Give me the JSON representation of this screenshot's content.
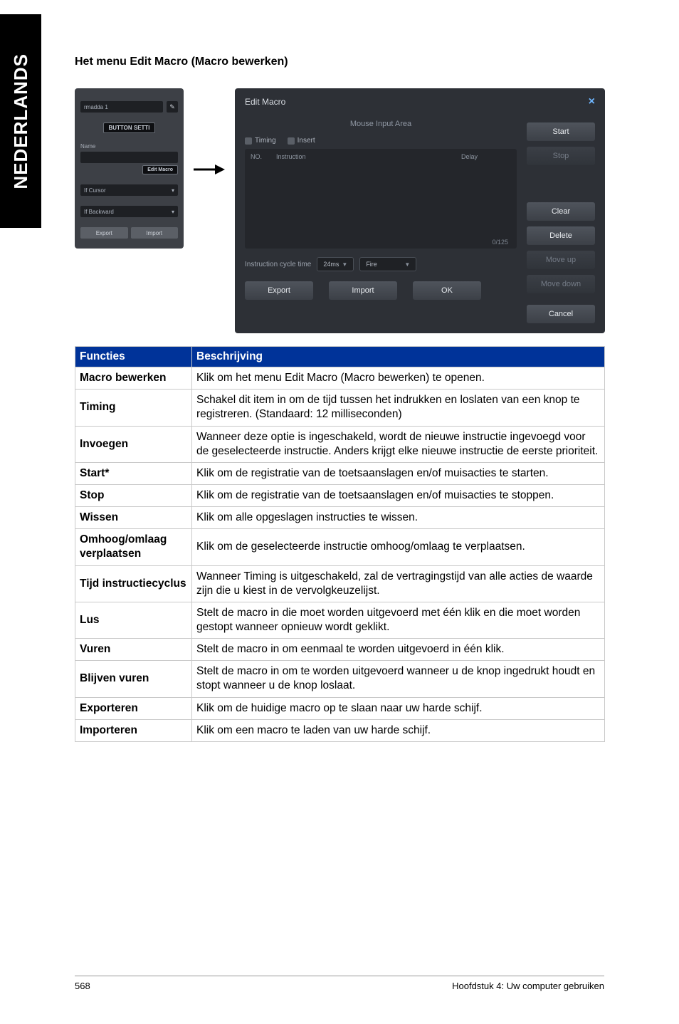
{
  "side_tab": "NEDERLANDS",
  "page_title": "Het menu Edit Macro (Macro bewerken)",
  "left_panel": {
    "top_field": "rmadda 1",
    "badge": "BUTTON SETTI",
    "name_label": "Name",
    "name_btn": "Edit Macro",
    "if_cursor": "If Cursor",
    "if_bwhwd": "If Backward",
    "export_btn": "Export",
    "import_btn": "Import"
  },
  "edit_macro": {
    "title": "Edit Macro",
    "close": "×",
    "subtitle": "Mouse Input Area",
    "tab_timing": "Timing",
    "tab_insert": "Insert",
    "col_no": "NO.",
    "col_instruction": "Instruction",
    "col_delay": "Delay",
    "counter": "0/125",
    "cycle_label": "Instruction cycle time",
    "cycle_value": "24ms",
    "fire_label": "Fire",
    "btn_start": "Start",
    "btn_stop": "Stop",
    "btn_clear": "Clear",
    "btn_delete": "Delete",
    "btn_moveup": "Move up",
    "btn_movedown": "Move down",
    "btn_export": "Export",
    "btn_import": "Import",
    "btn_ok": "OK",
    "btn_cancel": "Cancel"
  },
  "table": {
    "head_functies": "Functies",
    "head_beschrijving": "Beschrijving",
    "rows": [
      {
        "label": "Macro bewerken",
        "desc": "Klik om het menu Edit Macro (Macro bewerken) te openen."
      },
      {
        "label": "Timing",
        "desc": "Schakel dit item in om de tijd tussen het indrukken en loslaten van een knop te registreren. (Standaard: 12 milliseconden)"
      },
      {
        "label": "Invoegen",
        "desc": "Wanneer deze optie is ingeschakeld, wordt de nieuwe instructie ingevoegd voor de geselecteerde instructie. Anders krijgt elke nieuwe instructie de eerste prioriteit."
      },
      {
        "label": "Start*",
        "desc": "Klik om de registratie van de toetsaanslagen en/of muisacties te starten."
      },
      {
        "label": "Stop",
        "desc": "Klik om de registratie van de toetsaanslagen en/of muisacties te stoppen."
      },
      {
        "label": "Wissen",
        "desc": "Klik om alle opgeslagen instructies te wissen."
      },
      {
        "label": "Omhoog/omlaag verplaatsen",
        "desc": "Klik om de geselecteerde instructie omhoog/omlaag te verplaatsen."
      },
      {
        "label": "Tijd instructiecyclus",
        "desc": "Wanneer Timing is uitgeschakeld, zal de vertragingstijd van alle acties de waarde zijn die u kiest in de vervolgkeuzelijst."
      },
      {
        "label": "Lus",
        "desc": "Stelt de macro in die moet worden uitgevoerd met één klik en die moet worden gestopt wanneer opnieuw wordt geklikt."
      },
      {
        "label": "Vuren",
        "desc": "Stelt de macro in om eenmaal te worden uitgevoerd in één klik."
      },
      {
        "label": "Blijven vuren",
        "desc": "Stelt de macro in om te worden uitgevoerd wanneer u de knop ingedrukt houdt en stopt wanneer u de knop loslaat."
      },
      {
        "label": "Exporteren",
        "desc": "Klik om de huidige macro op te slaan naar uw harde schijf."
      },
      {
        "label": "Importeren",
        "desc": "Klik om een macro te laden van uw harde schijf."
      }
    ]
  },
  "footer": {
    "page_no": "568",
    "chapter": "Hoofdstuk 4: Uw computer gebruiken"
  },
  "colors": {
    "header_bg": "#003399",
    "header_fg": "#ffffff",
    "border": "#c9c9c9",
    "panel_bg": "#2d3036",
    "panel_dark": "#24262b",
    "side_bg": "#000000"
  }
}
